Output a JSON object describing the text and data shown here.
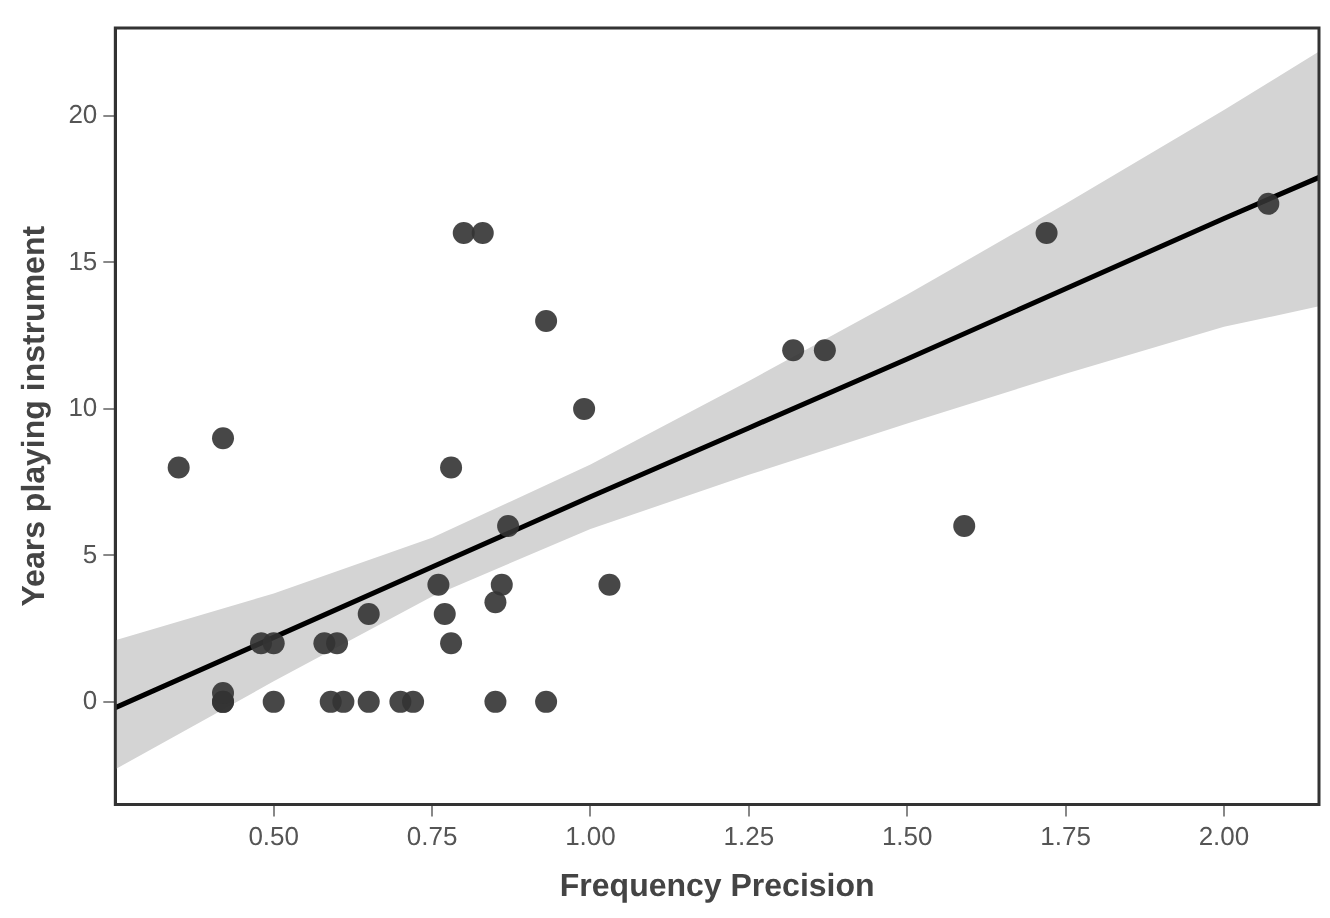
{
  "chart_data": {
    "type": "scatter",
    "xlabel": "Frequency Precision",
    "ylabel": "Years playing instrument",
    "xlim": [
      0.25,
      2.15
    ],
    "ylim": [
      -3.5,
      23
    ],
    "xticks": [
      {
        "value": 0.5,
        "label": "0.50"
      },
      {
        "value": 0.75,
        "label": "0.75"
      },
      {
        "value": 1.0,
        "label": "1.00"
      },
      {
        "value": 1.25,
        "label": "1.25"
      },
      {
        "value": 1.5,
        "label": "1.50"
      },
      {
        "value": 1.75,
        "label": "1.75"
      },
      {
        "value": 2.0,
        "label": "2.00"
      }
    ],
    "yticks": [
      0,
      5,
      10,
      15,
      20
    ],
    "grid": false,
    "legend": false,
    "series": [
      {
        "type": "line",
        "color": "#000000",
        "x": [
          0.25,
          0.5,
          0.75,
          1.0,
          1.25,
          1.5,
          1.75,
          2.0,
          2.15
        ],
        "values": [
          -0.2,
          2.2,
          4.6,
          7.0,
          9.35,
          11.7,
          14.1,
          16.5,
          17.9
        ],
        "lower": [
          -2.3,
          0.7,
          3.6,
          5.9,
          7.75,
          9.5,
          11.2,
          12.8,
          13.5
        ],
        "upper": [
          2.1,
          3.7,
          5.6,
          8.1,
          10.95,
          13.9,
          17.0,
          20.2,
          22.2
        ]
      },
      {
        "type": "scatter",
        "marker": "circle",
        "color": "#333333",
        "x": [
          0.35,
          0.42,
          0.42,
          0.42,
          0.42,
          0.48,
          0.5,
          0.5,
          0.58,
          0.6,
          0.59,
          0.61,
          0.65,
          0.65,
          0.7,
          0.72,
          0.76,
          0.77,
          0.78,
          0.78,
          0.8,
          0.83,
          0.87,
          0.86,
          0.85,
          0.85,
          0.93,
          0.93,
          0.99,
          1.03,
          1.32,
          1.37,
          1.59,
          1.72,
          2.07
        ],
        "values": [
          8,
          9,
          0,
          0,
          0.3,
          2,
          2,
          0,
          2,
          2,
          0,
          0,
          3,
          0,
          0,
          0,
          4,
          3,
          2,
          8,
          16,
          16,
          6,
          4,
          3.4,
          0,
          13,
          0,
          10,
          4,
          12,
          12,
          6,
          16,
          17
        ]
      }
    ]
  }
}
